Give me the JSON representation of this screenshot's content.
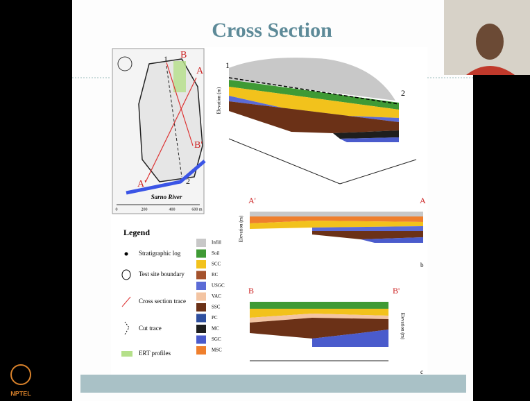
{
  "slide": {
    "title": "Cross Section"
  },
  "map": {
    "labels": [
      "B",
      "1",
      "A",
      "B'",
      "A'",
      "2"
    ],
    "river": "Sarno River",
    "scale": [
      "0",
      "200",
      "400",
      "600 m"
    ]
  },
  "legend": {
    "title": "Legend",
    "items": [
      "Stratigraphic log",
      "Test site boundary",
      "Cross section trace",
      "Cut trace",
      "ERT profiles"
    ]
  },
  "units": [
    {
      "label": "Infill",
      "color": "#c8c8c8"
    },
    {
      "label": "Soil",
      "color": "#3f9a35"
    },
    {
      "label": "SCC",
      "color": "#f2c21c"
    },
    {
      "label": "RC",
      "color": "#a4522c"
    },
    {
      "label": "USGC",
      "color": "#5b6bd6"
    },
    {
      "label": "VAC",
      "color": "#f3c4a2"
    },
    {
      "label": "SSC",
      "color": "#6b3117"
    },
    {
      "label": "PC",
      "color": "#2f4f9e"
    },
    {
      "label": "MC",
      "color": "#1e1e1e"
    },
    {
      "label": "SGC",
      "color": "#4a5bcc"
    },
    {
      "label": "MSC",
      "color": "#ef7f2d"
    }
  ],
  "sections": [
    {
      "left": "1",
      "right": "2",
      "axis": "Elevation (m)"
    },
    {
      "left": "A'",
      "right": "A",
      "panel": "b",
      "axis": "Elevation (m)"
    },
    {
      "left": "B",
      "right": "B'",
      "panel": "c",
      "axis": "Elevation (m)"
    }
  ],
  "branding": {
    "logo": "NPTEL"
  }
}
